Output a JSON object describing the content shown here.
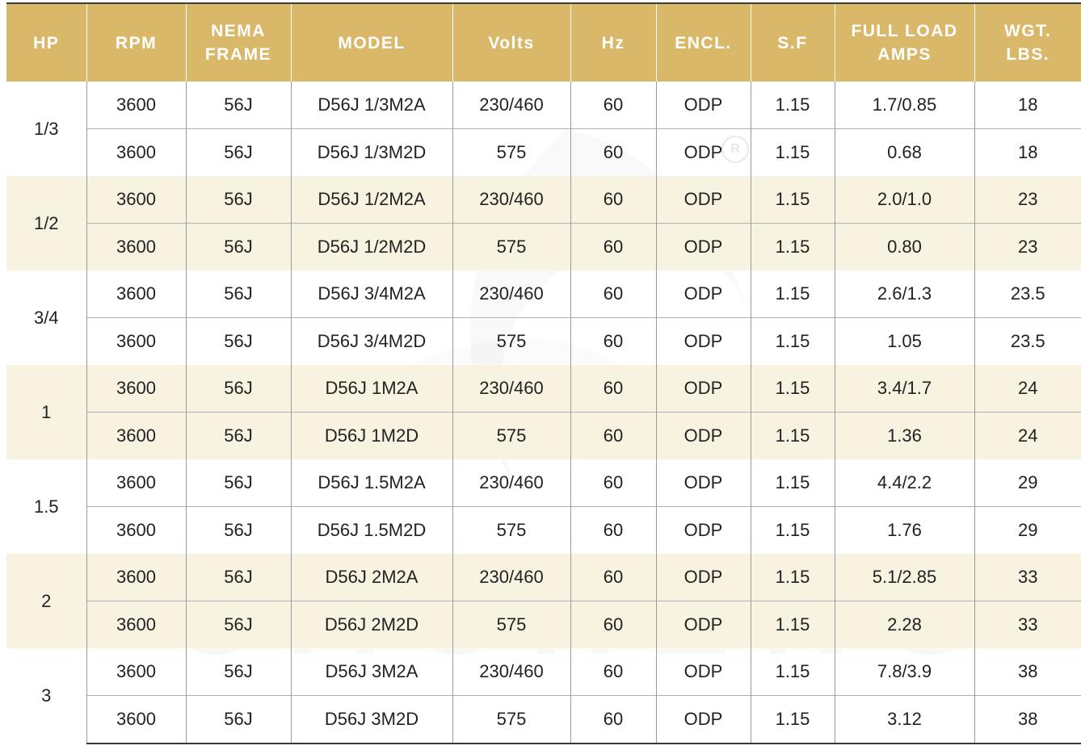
{
  "headers": [
    "HP",
    "RPM",
    "NEMA FRAME",
    "MODEL",
    "Volts",
    "Hz",
    "ENCL.",
    "S.F",
    "FULL LOAD AMPS",
    "WGT. LBS."
  ],
  "groups": [
    {
      "hp": "1/3",
      "rows": [
        [
          "3600",
          "56J",
          "D56J 1/3M2A",
          "230/460",
          "60",
          "ODP",
          "1.15",
          "1.7/0.85",
          "18"
        ],
        [
          "3600",
          "56J",
          "D56J 1/3M2D",
          "575",
          "60",
          "ODP",
          "1.15",
          "0.68",
          "18"
        ]
      ]
    },
    {
      "hp": "1/2",
      "rows": [
        [
          "3600",
          "56J",
          "D56J 1/2M2A",
          "230/460",
          "60",
          "ODP",
          "1.15",
          "2.0/1.0",
          "23"
        ],
        [
          "3600",
          "56J",
          "D56J 1/2M2D",
          "575",
          "60",
          "ODP",
          "1.15",
          "0.80",
          "23"
        ]
      ]
    },
    {
      "hp": "3/4",
      "rows": [
        [
          "3600",
          "56J",
          "D56J 3/4M2A",
          "230/460",
          "60",
          "ODP",
          "1.15",
          "2.6/1.3",
          "23.5"
        ],
        [
          "3600",
          "56J",
          "D56J 3/4M2D",
          "575",
          "60",
          "ODP",
          "1.15",
          "1.05",
          "23.5"
        ]
      ]
    },
    {
      "hp": "1",
      "rows": [
        [
          "3600",
          "56J",
          "D56J 1M2A",
          "230/460",
          "60",
          "ODP",
          "1.15",
          "3.4/1.7",
          "24"
        ],
        [
          "3600",
          "56J",
          "D56J 1M2D",
          "575",
          "60",
          "ODP",
          "1.15",
          "1.36",
          "24"
        ]
      ]
    },
    {
      "hp": "1.5",
      "rows": [
        [
          "3600",
          "56J",
          "D56J 1.5M2A",
          "230/460",
          "60",
          "ODP",
          "1.15",
          "4.4/2.2",
          "29"
        ],
        [
          "3600",
          "56J",
          "D56J 1.5M2D",
          "575",
          "60",
          "ODP",
          "1.15",
          "1.76",
          "29"
        ]
      ]
    },
    {
      "hp": "2",
      "rows": [
        [
          "3600",
          "56J",
          "D56J 2M2A",
          "230/460",
          "60",
          "ODP",
          "1.15",
          "5.1/2.85",
          "33"
        ],
        [
          "3600",
          "56J",
          "D56J 2M2D",
          "575",
          "60",
          "ODP",
          "1.15",
          "2.28",
          "33"
        ]
      ]
    },
    {
      "hp": "3",
      "rows": [
        [
          "3600",
          "56J",
          "D56J 3M2A",
          "230/460",
          "60",
          "ODP",
          "1.15",
          "7.8/3.9",
          "38"
        ],
        [
          "3600",
          "56J",
          "D56J 3M2D",
          "575",
          "60",
          "ODP",
          "1.15",
          "3.12",
          "38"
        ]
      ]
    }
  ],
  "watermark": {
    "text": "CACHENG",
    "registered": "R"
  },
  "colors": {
    "header_bg": "#d9b86a",
    "band_bg": "#f8f2e1",
    "header_text": "#ffffff",
    "body_text": "#222222"
  }
}
